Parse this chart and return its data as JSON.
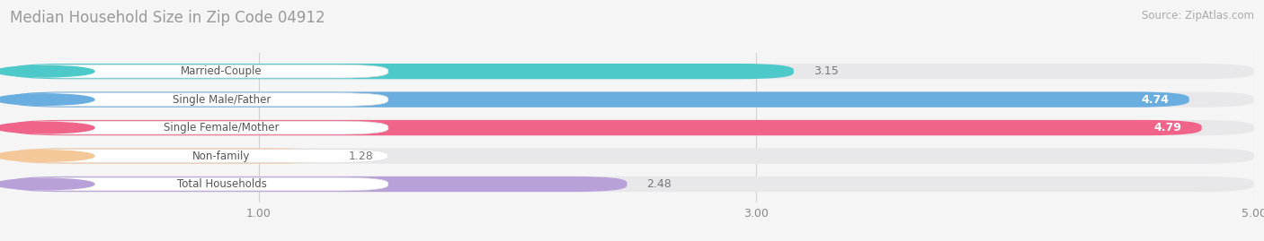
{
  "title": "Median Household Size in Zip Code 04912",
  "source": "Source: ZipAtlas.com",
  "categories": [
    "Married-Couple",
    "Single Male/Father",
    "Single Female/Mother",
    "Non-family",
    "Total Households"
  ],
  "values": [
    3.15,
    4.74,
    4.79,
    1.28,
    2.48
  ],
  "bar_colors": [
    "#4ec9c9",
    "#6aaee0",
    "#f0648a",
    "#f5c99a",
    "#b8a0d8"
  ],
  "dot_colors": [
    "#4ec9c9",
    "#6aaee0",
    "#f0648a",
    "#f5c89a",
    "#b8a0d8"
  ],
  "bar_bg_color": "#e8e8ea",
  "label_bg_color": "#ffffff",
  "label_text_color": "#555555",
  "value_color_inside": "#ffffff",
  "value_color_outside": "#777777",
  "xlim_min": 0,
  "xlim_max": 5.0,
  "xticks": [
    1.0,
    3.0,
    5.0
  ],
  "background_color": "#f5f5f5",
  "title_fontsize": 12,
  "source_fontsize": 8.5,
  "label_fontsize": 8.5,
  "value_fontsize": 9,
  "tick_fontsize": 9,
  "bar_height": 0.55,
  "bar_gap": 0.35
}
